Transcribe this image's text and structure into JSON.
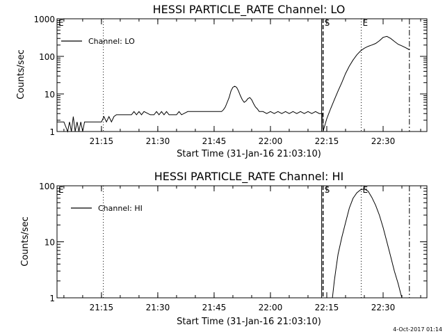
{
  "chart_data": [
    {
      "type": "line",
      "title": "HESSI PARTICLE_RATE Channel: LO",
      "xlabel": "Start Time (31-Jan-16 21:03:10)",
      "ylabel": "Counts/sec",
      "yscale": "log",
      "ylim": [
        1,
        1000
      ],
      "xlim": [
        "21:03:10",
        "22:41:40"
      ],
      "xticks": [
        "21:15",
        "21:30",
        "21:45",
        "22:00",
        "22:15",
        "22:30"
      ],
      "yticks": [
        "1",
        "10",
        "100",
        "1000"
      ],
      "legend": {
        "position": "top-left",
        "entries": [
          "Channel: LO"
        ]
      },
      "markers": [
        {
          "label": "E",
          "time": "21:03:10",
          "style": "solid"
        },
        {
          "label": "",
          "time": "21:15:30",
          "style": "dotted"
        },
        {
          "label": "S",
          "time": "22:14:00",
          "style": "dashed"
        },
        {
          "label": "E",
          "time": "22:24:10",
          "style": "dotted"
        },
        {
          "label": "",
          "time": "22:37:00",
          "style": "dashdot"
        }
      ],
      "series": [
        {
          "name": "Channel: LO",
          "x": [
            "21:03:10",
            "21:05:00",
            "21:06:00",
            "21:06:30",
            "21:07:00",
            "21:07:30",
            "21:08:00",
            "21:08:30",
            "21:09:00",
            "21:09:30",
            "21:10:00",
            "21:10:30",
            "21:11:00",
            "21:15:00",
            "21:15:40",
            "21:16:20",
            "21:17:00",
            "21:17:40",
            "21:18:20",
            "21:19:00",
            "21:20:00",
            "21:21:00",
            "21:22:00",
            "21:23:00",
            "21:23:40",
            "21:24:20",
            "21:25:00",
            "21:25:40",
            "21:26:20",
            "21:28:00",
            "21:29:00",
            "21:29:40",
            "21:30:20",
            "21:31:00",
            "21:31:40",
            "21:32:20",
            "21:33:00",
            "21:34:00",
            "21:35:00",
            "21:35:40",
            "21:36:20",
            "21:38:00",
            "21:39:00",
            "21:40:00",
            "21:41:00",
            "21:42:00",
            "21:43:00",
            "21:44:00",
            "21:45:00",
            "21:46:00",
            "21:47:00",
            "21:47:30",
            "21:48:00",
            "21:48:30",
            "21:49:00",
            "21:49:30",
            "21:50:00",
            "21:50:30",
            "21:51:00",
            "21:51:30",
            "21:52:00",
            "21:52:30",
            "21:53:00",
            "21:53:30",
            "21:54:00",
            "21:54:30",
            "21:55:00",
            "21:55:30",
            "21:56:00",
            "21:56:30",
            "21:57:00",
            "21:58:00",
            "21:59:00",
            "22:00:00",
            "22:01:00",
            "22:02:00",
            "22:03:00",
            "22:04:00",
            "22:05:00",
            "22:06:00",
            "22:07:00",
            "22:08:00",
            "22:09:00",
            "22:10:00",
            "22:11:00",
            "22:12:00",
            "22:13:00",
            "22:13:50",
            "22:14:00",
            "22:15:00",
            "22:16:00",
            "22:17:00",
            "22:18:00",
            "22:19:00",
            "22:20:00",
            "22:21:00",
            "22:22:00",
            "22:23:00",
            "22:24:00",
            "22:25:00",
            "22:26:00",
            "22:27:00",
            "22:28:00",
            "22:29:00",
            "22:30:00",
            "22:31:00",
            "22:32:00",
            "22:33:00",
            "22:34:00",
            "22:35:00",
            "22:36:00",
            "22:37:00"
          ],
          "y": [
            1.8,
            1.8,
            1,
            1.8,
            1,
            2.5,
            1,
            1.8,
            1,
            1.8,
            1,
            1.8,
            1.8,
            1.8,
            2.5,
            1.8,
            2.5,
            1.8,
            2.5,
            2.8,
            2.8,
            2.8,
            2.8,
            2.8,
            3.4,
            2.8,
            3.4,
            2.8,
            3.4,
            2.8,
            2.8,
            3.4,
            2.8,
            3.4,
            2.8,
            3.4,
            2.8,
            2.8,
            2.8,
            3.4,
            2.8,
            3.4,
            3.4,
            3.4,
            3.4,
            3.4,
            3.4,
            3.4,
            3.4,
            3.4,
            3.4,
            3.8,
            4.5,
            6,
            8,
            12,
            15,
            16,
            15,
            12,
            9,
            7,
            6,
            6.5,
            7.5,
            8,
            7,
            5.5,
            4.5,
            4,
            3.4,
            3.4,
            3,
            3.4,
            3,
            3.4,
            3,
            3.4,
            3,
            3.4,
            3,
            3.4,
            3,
            3.4,
            3,
            3.4,
            3,
            3,
            1,
            2.2,
            4,
            7,
            12,
            20,
            35,
            55,
            80,
            110,
            140,
            165,
            185,
            200,
            220,
            260,
            320,
            340,
            300,
            250,
            210,
            190,
            170,
            150
          ]
        }
      ]
    },
    {
      "type": "line",
      "title": "HESSI PARTICLE_RATE Channel: HI",
      "xlabel": "Start Time (31-Jan-16 21:03:10)",
      "ylabel": "Counts/sec",
      "yscale": "log",
      "ylim": [
        1,
        100
      ],
      "xlim": [
        "21:03:10",
        "22:41:40"
      ],
      "xticks": [
        "21:15",
        "21:30",
        "21:45",
        "22:00",
        "22:15",
        "22:30"
      ],
      "yticks": [
        "1",
        "10",
        "100"
      ],
      "legend": {
        "position": "top-left",
        "entries": [
          "Channel: HI"
        ]
      },
      "markers": [
        {
          "label": "E",
          "time": "21:03:10",
          "style": "solid"
        },
        {
          "label": "",
          "time": "21:15:30",
          "style": "dotted"
        },
        {
          "label": "S",
          "time": "22:14:00",
          "style": "dashed"
        },
        {
          "label": "E",
          "time": "22:24:10",
          "style": "dotted"
        },
        {
          "label": "",
          "time": "22:37:00",
          "style": "dashdot"
        }
      ],
      "series": [
        {
          "name": "Channel: HI",
          "x": [
            "22:16:30",
            "22:17:00",
            "22:17:30",
            "22:18:00",
            "22:19:00",
            "22:20:00",
            "22:21:00",
            "22:22:00",
            "22:23:00",
            "22:24:00",
            "22:25:00",
            "22:26:00",
            "22:27:00",
            "22:28:00",
            "22:29:00",
            "22:30:00",
            "22:31:00",
            "22:32:00",
            "22:33:00",
            "22:34:00",
            "22:34:40",
            "22:35:00"
          ],
          "y": [
            1,
            2,
            3.5,
            6,
            12,
            22,
            40,
            60,
            75,
            85,
            88,
            80,
            62,
            45,
            30,
            18,
            10,
            5.5,
            3,
            1.8,
            1.2,
            1
          ]
        }
      ]
    }
  ],
  "footer": {
    "timestamp": "4-Oct-2017 01:14"
  }
}
